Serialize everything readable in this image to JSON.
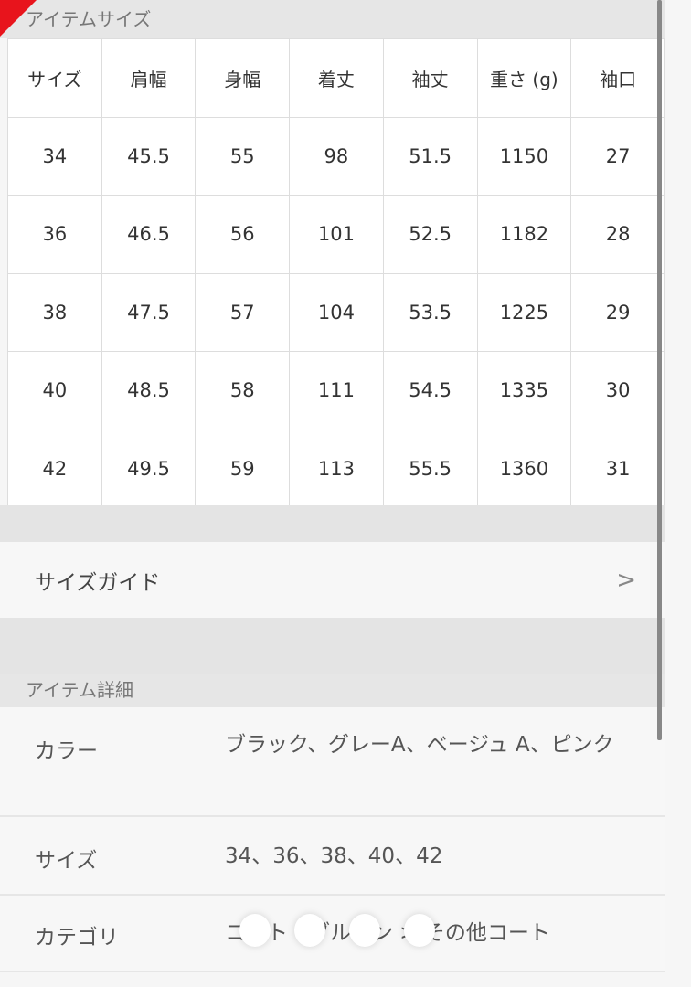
{
  "size_section": {
    "title": "アイテムサイズ",
    "headers": [
      "サイズ",
      "肩幅",
      "身幅",
      "着丈",
      "袖丈",
      "重さ (g)",
      "袖口"
    ],
    "rows": [
      [
        "34",
        "45.5",
        "55",
        "98",
        "51.5",
        "1150",
        "27"
      ],
      [
        "36",
        "46.5",
        "56",
        "101",
        "52.5",
        "1182",
        "28"
      ],
      [
        "38",
        "47.5",
        "57",
        "104",
        "53.5",
        "1225",
        "29"
      ],
      [
        "40",
        "48.5",
        "58",
        "111",
        "54.5",
        "1335",
        "30"
      ],
      [
        "42",
        "49.5",
        "59",
        "113",
        "55.5",
        "1360",
        "31"
      ]
    ]
  },
  "size_guide": {
    "label": "サイズガイド",
    "chevron": ">"
  },
  "details": {
    "title": "アイテム詳細",
    "items": [
      {
        "key": "カラー",
        "value": "ブラック、グレーA、ベージュ A、ピンク"
      },
      {
        "key": "サイズ",
        "value": "34、36、38、40、42"
      },
      {
        "key": "カテゴリ",
        "value": "コート・ブルゾン > その他コート"
      }
    ]
  },
  "colors": {
    "accent": "#e8141c"
  }
}
